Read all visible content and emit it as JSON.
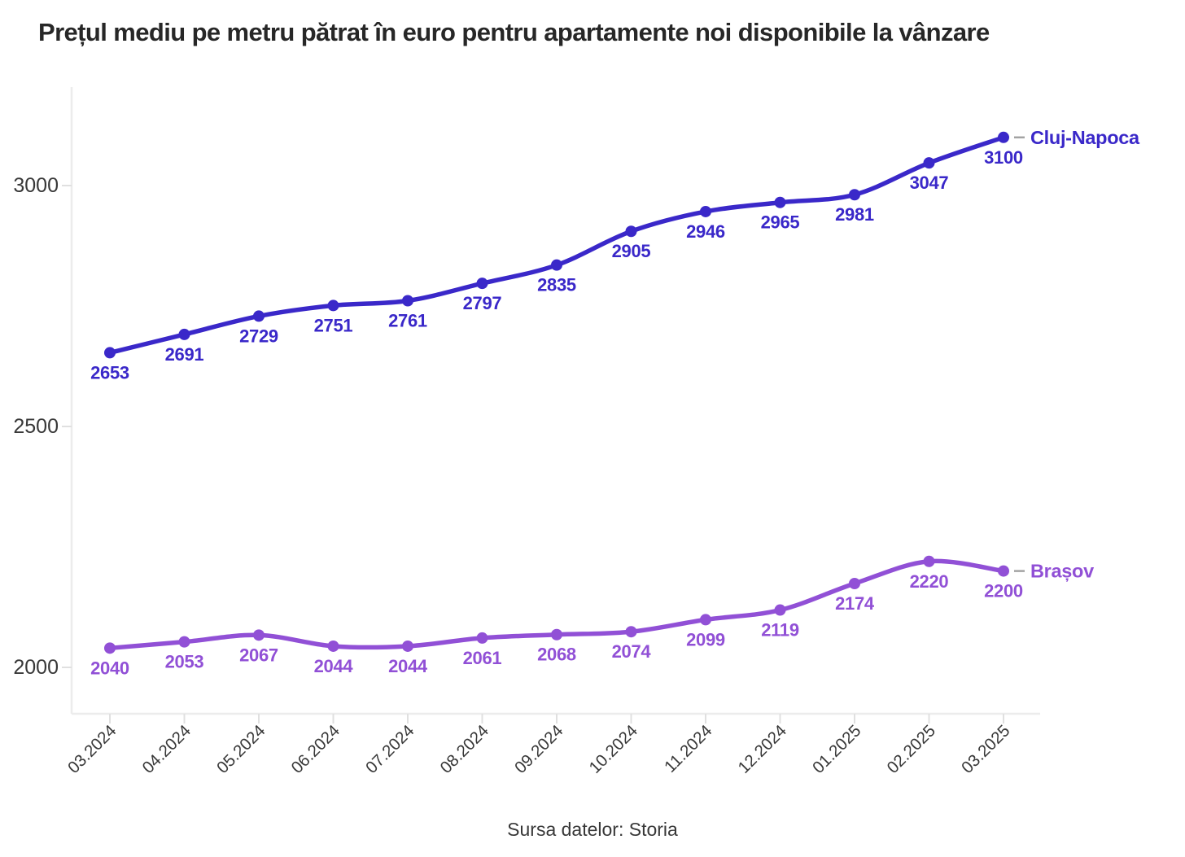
{
  "chart": {
    "title": "Prețul mediu pe metru pătrat în euro pentru apartamente noi disponibile la vânzare",
    "source": "Sursa datelor: Storia"
  },
  "chart_data": {
    "type": "line",
    "x": [
      "03.2024",
      "04.2024",
      "05.2024",
      "06.2024",
      "07.2024",
      "08.2024",
      "09.2024",
      "10.2024",
      "11.2024",
      "12.2024",
      "01.2025",
      "02.2025",
      "03.2025"
    ],
    "series": [
      {
        "name": "Cluj-Napoca",
        "color": "#3a28c9",
        "values": [
          2653,
          2691,
          2729,
          2751,
          2761,
          2797,
          2835,
          2905,
          2946,
          2965,
          2981,
          3047,
          3100
        ]
      },
      {
        "name": "Brașov",
        "color": "#9150d6",
        "values": [
          2040,
          2053,
          2067,
          2044,
          2044,
          2061,
          2068,
          2074,
          2099,
          2119,
          2174,
          2220,
          2200
        ]
      }
    ],
    "title": "Prețul mediu pe metru pătrat în euro pentru apartamente noi disponibile la vânzare",
    "xlabel": "",
    "ylabel": "",
    "y_ticks": [
      2000,
      2500,
      3000
    ],
    "ylim": [
      1900,
      3200
    ],
    "grid": false,
    "point_labels": true,
    "legend_position": "end-of-line",
    "axis_color": "#ececec",
    "tick_color": "#e0e0e0",
    "tick_label_color": "#383838",
    "end_dash_color": "#a3a3a3"
  }
}
